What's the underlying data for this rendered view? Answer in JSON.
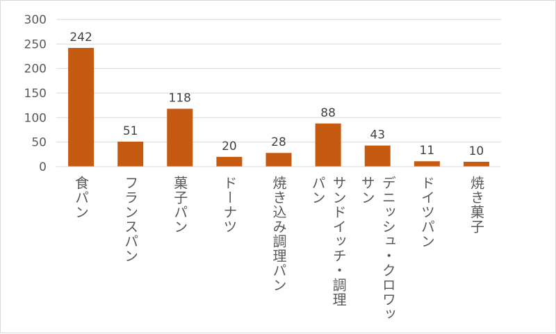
{
  "colors": {
    "bar": "#C55A11",
    "grid": "#d9d9d9",
    "text": "#595959",
    "label": "#404040"
  },
  "chart_data": {
    "type": "bar",
    "categories": [
      "食パン",
      "フランスパン",
      "菓子パン",
      "ドーナツ",
      "焼き込み調理パン",
      "サンドイッチ・調理パン",
      "デニッシュ・クロワッサン",
      "ドイツパン",
      "焼き菓子"
    ],
    "category_lines": [
      [
        "食パン"
      ],
      [
        "フランスパン"
      ],
      [
        "菓子パン"
      ],
      [
        "ドーナツ"
      ],
      [
        "焼き込み調理パン"
      ],
      [
        "サンドイッチ・調理",
        "パン"
      ],
      [
        "デニッシュ・クロワッ",
        "サン"
      ],
      [
        "ドイツパン"
      ],
      [
        "焼き菓子"
      ]
    ],
    "values": [
      242,
      51,
      118,
      20,
      28,
      88,
      43,
      11,
      10
    ],
    "data_labels": [
      "242",
      "51",
      "118",
      "20",
      "28",
      "88",
      "43",
      "11",
      "10"
    ],
    "ylim": [
      0,
      300
    ],
    "yticks": [
      0,
      50,
      100,
      150,
      200,
      250,
      300
    ],
    "ytick_labels": [
      "0",
      "50",
      "100",
      "150",
      "200",
      "250",
      "300"
    ],
    "grid": true,
    "legend": "none",
    "title": "",
    "xlabel": "",
    "ylabel": ""
  }
}
